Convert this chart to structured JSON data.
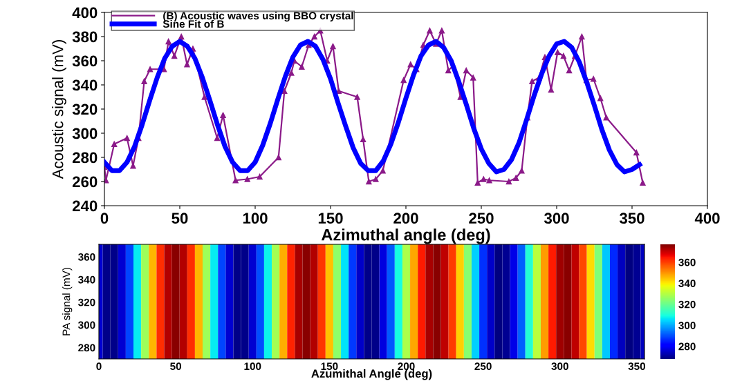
{
  "chart_data": [
    {
      "type": "line",
      "xlabel": "Azimuthal angle (deg)",
      "ylabel": "Acoustic signal (mV)",
      "xlim": [
        0,
        400
      ],
      "xticks": [
        0,
        50,
        100,
        150,
        200,
        250,
        300,
        350,
        400
      ],
      "ylim": [
        240,
        400
      ],
      "yticks": [
        240,
        260,
        280,
        300,
        320,
        340,
        360,
        380,
        400
      ],
      "grid": false,
      "legend": "top left",
      "series": [
        {
          "name": "(B) Acoustic waves using BBO crystal",
          "color": "#8b1a89",
          "marker": "triangle",
          "x": [
            0,
            1,
            6.5,
            15,
            19,
            22.6,
            26.4,
            30.3,
            39.5,
            42.5,
            46.4,
            51,
            54.8,
            58.7,
            66.4,
            74.8,
            78.7,
            87,
            94.8,
            103,
            115.5,
            119.4,
            124,
            126,
            130.9,
            135.5,
            139.3,
            143.2,
            147.8,
            151.6,
            155.4,
            167.7,
            171.6,
            175.4,
            180,
            184.7,
            198.5,
            203.1,
            207,
            211.5,
            215.8,
            220,
            223.8,
            228.1,
            231.5,
            236.2,
            240,
            244.6,
            247.6,
            251.5,
            255.3,
            268.3,
            273,
            276.8,
            280.6,
            283.7,
            288.3,
            292.2,
            296.3,
            300.6,
            304.5,
            308.3,
            312.1,
            316.7,
            319.8,
            324.4,
            329,
            332.9,
            352.9,
            357.1
          ],
          "values": [
            272,
            261,
            291,
            296,
            273,
            296,
            343,
            353,
            353,
            376,
            364,
            380,
            357,
            370,
            330,
            296,
            315,
            261,
            262,
            264,
            280,
            335,
            350,
            360,
            355,
            373,
            380,
            385,
            360,
            372,
            335,
            330,
            295,
            260,
            262,
            269,
            344,
            357,
            353,
            373,
            385,
            374,
            385,
            352,
            356,
            330,
            352,
            346,
            259,
            262,
            261,
            260,
            263,
            269,
            313,
            343,
            346,
            363,
            336,
            367,
            364,
            352,
            364,
            380,
            344,
            345,
            329,
            313,
            284,
            259
          ]
        },
        {
          "name": "Sine Fit of B",
          "color": "#0000ff",
          "marker": "none",
          "x": [
            0,
            5,
            10,
            15,
            20,
            25,
            30,
            35,
            40,
            45,
            50,
            55,
            60,
            65,
            70,
            75,
            80,
            85,
            90,
            95,
            100,
            105,
            110,
            115,
            120,
            125,
            130,
            135,
            140,
            145,
            150,
            155,
            160,
            165,
            170,
            175,
            180,
            185,
            190,
            195,
            200,
            205,
            210,
            215,
            220,
            225,
            230,
            235,
            240,
            245,
            250,
            255,
            260,
            265,
            270,
            275,
            280,
            285,
            290,
            295,
            300,
            305,
            310,
            315,
            320,
            325,
            330,
            335,
            340,
            345,
            350,
            355
          ],
          "values": [
            276,
            269,
            269,
            276,
            289,
            307,
            327,
            346,
            362,
            372,
            376,
            372,
            362,
            346,
            327,
            307,
            289,
            276,
            269,
            269,
            276,
            290,
            308,
            328,
            347,
            363,
            373,
            376,
            372,
            361,
            345,
            325,
            306,
            288,
            275,
            269,
            269,
            277,
            291,
            309,
            329,
            348,
            364,
            373,
            376,
            371,
            360,
            343,
            324,
            304,
            287,
            275,
            268,
            270,
            278,
            292,
            311,
            331,
            349,
            364,
            374,
            376,
            371,
            359,
            342,
            323,
            303,
            286,
            274,
            268,
            270,
            274
          ]
        }
      ]
    },
    {
      "type": "heatmap",
      "xlabel": "Azumithal Angle (deg)",
      "ylabel": "PA signal (mV)",
      "xlim": [
        0,
        355
      ],
      "xticks": [
        0,
        50,
        100,
        150,
        200,
        250,
        300,
        350
      ],
      "ylim": [
        270,
        371
      ],
      "yticks": [
        280,
        300,
        320,
        340,
        360
      ],
      "clim": [
        268,
        377
      ],
      "cticks": [
        280,
        300,
        320,
        340,
        360
      ],
      "x": [
        0,
        5,
        10,
        15,
        20,
        25,
        30,
        35,
        40,
        45,
        50,
        55,
        60,
        65,
        70,
        75,
        80,
        85,
        90,
        95,
        100,
        105,
        110,
        115,
        120,
        125,
        130,
        135,
        140,
        145,
        150,
        155,
        160,
        165,
        170,
        175,
        180,
        185,
        190,
        195,
        200,
        205,
        210,
        215,
        220,
        225,
        230,
        235,
        240,
        245,
        250,
        255,
        260,
        265,
        270,
        275,
        280,
        285,
        290,
        295,
        300,
        305,
        310,
        315,
        320,
        325,
        330,
        335,
        340,
        345,
        350,
        355
      ],
      "cells": [
        [
          276,
          269,
          269,
          276,
          289,
          307,
          327,
          346,
          362,
          372,
          376,
          372,
          362,
          346,
          327,
          307,
          289,
          276,
          269,
          269,
          276,
          290,
          308,
          328,
          347,
          363,
          373,
          376,
          372,
          361,
          345,
          325,
          306,
          288,
          275,
          269,
          269,
          277,
          291,
          309,
          329,
          348,
          364,
          373,
          376,
          371,
          360,
          343,
          324,
          304,
          287,
          275,
          268,
          270,
          278,
          292,
          311,
          331,
          349,
          364,
          374,
          376,
          371,
          359,
          342,
          323,
          303,
          286,
          274,
          268,
          270,
          274
        ]
      ]
    }
  ]
}
